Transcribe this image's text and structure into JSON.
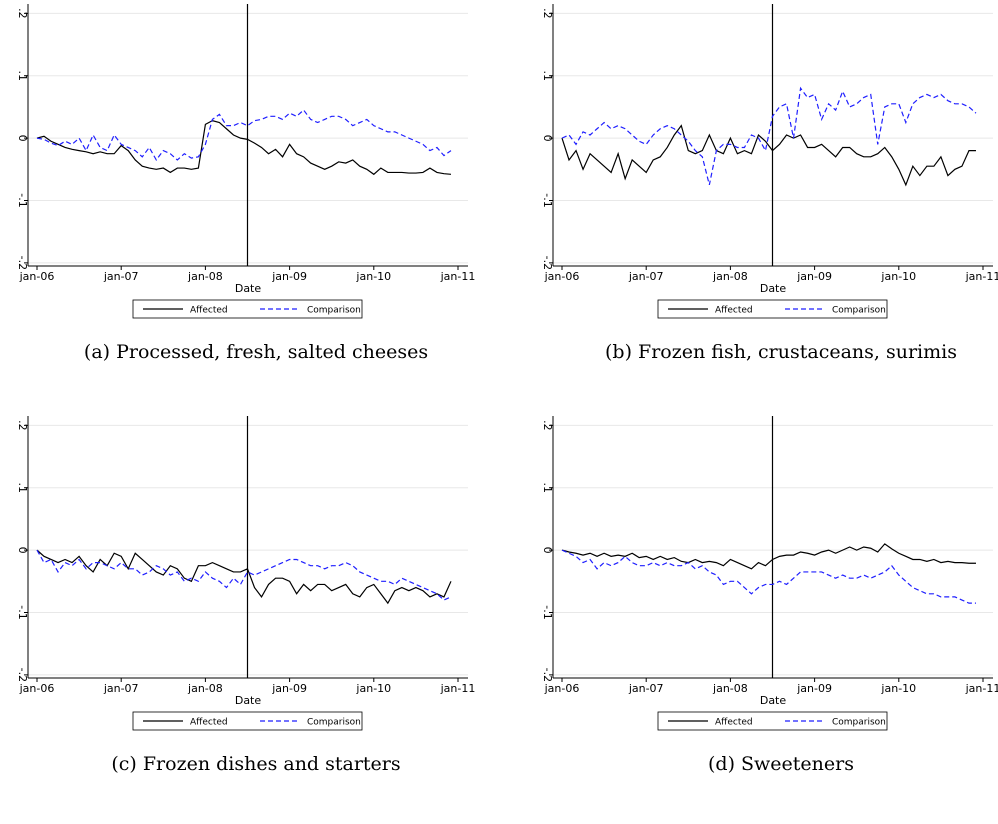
{
  "chart_data": [
    {
      "type": "line",
      "title": "(a) Processed, fresh, salted cheeses",
      "xlabel": "Date",
      "grid": true,
      "legend": "bottom",
      "categories": [
        "jan-06",
        null,
        null,
        null,
        null,
        null,
        null,
        null,
        null,
        null,
        null,
        null,
        "jan-07",
        null,
        null,
        null,
        null,
        null,
        null,
        null,
        null,
        null,
        null,
        null,
        "jan-08",
        null,
        null,
        null,
        null,
        null,
        null,
        null,
        null,
        null,
        null,
        null,
        "jan-09",
        null,
        null,
        null,
        null,
        null,
        null,
        null,
        null,
        null,
        null,
        null,
        "jan-10",
        null,
        null,
        null,
        null,
        null,
        null,
        null,
        null,
        null,
        null,
        null,
        "jan-11"
      ],
      "ylim": [
        -0.205,
        0.215
      ],
      "yticks": [
        {
          "value": -0.2,
          "label": "-.2"
        },
        {
          "value": -0.1,
          "label": "-.1"
        },
        0,
        {
          "value": 0.1,
          "label": ".1"
        },
        {
          "value": 0.2,
          "label": ".2"
        }
      ],
      "series": [
        {
          "name": "Affected",
          "color": "#000000",
          "style": "solid",
          "values": [
            0,
            0.003,
            -0.005,
            -0.01,
            -0.015,
            -0.018,
            -0.02,
            -0.022,
            -0.025,
            -0.022,
            -0.025,
            -0.025,
            -0.012,
            -0.02,
            -0.035,
            -0.045,
            -0.048,
            -0.05,
            -0.048,
            -0.055,
            -0.048,
            -0.048,
            -0.05,
            -0.048,
            0.022,
            0.028,
            0.025,
            0.015,
            0.005,
            0,
            -0.002,
            -0.008,
            -0.015,
            -0.025,
            -0.018,
            -0.03,
            -0.01,
            -0.025,
            -0.03,
            -0.04,
            -0.045,
            -0.05,
            -0.045,
            -0.038,
            -0.04,
            -0.035,
            -0.045,
            -0.05,
            -0.058,
            -0.048,
            -0.055,
            -0.055,
            -0.055,
            -0.056,
            -0.056,
            -0.055,
            -0.048,
            -0.055,
            -0.057,
            -0.058,
            null
          ]
        },
        {
          "name": "Comparison",
          "color": "#1f1fff",
          "style": "dashed",
          "values": [
            0,
            -0.002,
            -0.008,
            -0.012,
            -0.005,
            -0.01,
            0,
            -0.02,
            0.005,
            -0.015,
            -0.02,
            0.005,
            -0.01,
            -0.015,
            -0.02,
            -0.03,
            -0.015,
            -0.035,
            -0.02,
            -0.025,
            -0.035,
            -0.025,
            -0.032,
            -0.03,
            -0.01,
            0.03,
            0.038,
            0.02,
            0.02,
            0.025,
            0.02,
            0.028,
            0.03,
            0.035,
            0.035,
            0.03,
            0.04,
            0.035,
            0.045,
            0.03,
            0.025,
            0.03,
            0.035,
            0.035,
            0.03,
            0.02,
            0.025,
            0.03,
            0.02,
            0.015,
            0.01,
            0.01,
            0.005,
            0,
            -0.005,
            -0.01,
            -0.02,
            -0.015,
            -0.028,
            -0.02,
            null
          ]
        }
      ]
    },
    {
      "type": "line",
      "title": "(b) Frozen fish, crustaceans, surimis",
      "xlabel": "Date",
      "grid": true,
      "legend": "bottom",
      "categories": [
        "jan-06",
        null,
        null,
        null,
        null,
        null,
        null,
        null,
        null,
        null,
        null,
        null,
        "jan-07",
        null,
        null,
        null,
        null,
        null,
        null,
        null,
        null,
        null,
        null,
        null,
        "jan-08",
        null,
        null,
        null,
        null,
        null,
        null,
        null,
        null,
        null,
        null,
        null,
        "jan-09",
        null,
        null,
        null,
        null,
        null,
        null,
        null,
        null,
        null,
        null,
        null,
        "jan-10",
        null,
        null,
        null,
        null,
        null,
        null,
        null,
        null,
        null,
        null,
        null,
        "jan-11"
      ],
      "ylim": [
        -0.205,
        0.215
      ],
      "yticks": [
        {
          "value": -0.2,
          "label": "-.2"
        },
        {
          "value": -0.1,
          "label": "-.1"
        },
        0,
        {
          "value": 0.1,
          "label": ".1"
        },
        {
          "value": 0.2,
          "label": ".2"
        }
      ],
      "series": [
        {
          "name": "Affected",
          "color": "#000000",
          "style": "solid",
          "values": [
            0,
            -0.035,
            -0.02,
            -0.05,
            -0.025,
            -0.035,
            -0.045,
            -0.055,
            -0.025,
            -0.065,
            -0.035,
            -0.045,
            -0.055,
            -0.035,
            -0.03,
            -0.015,
            0.005,
            0.02,
            -0.02,
            -0.025,
            -0.02,
            0.005,
            -0.02,
            -0.025,
            0,
            -0.025,
            -0.02,
            -0.025,
            0.005,
            -0.005,
            -0.02,
            -0.01,
            0.005,
            0,
            0.005,
            -0.015,
            -0.015,
            -0.01,
            -0.02,
            -0.03,
            -0.015,
            -0.015,
            -0.025,
            -0.03,
            -0.03,
            -0.025,
            -0.015,
            -0.03,
            -0.05,
            -0.075,
            -0.045,
            -0.06,
            -0.045,
            -0.045,
            -0.03,
            -0.06,
            -0.05,
            -0.045,
            -0.02,
            -0.02,
            null
          ]
        },
        {
          "name": "Comparison",
          "color": "#1f1fff",
          "style": "dashed",
          "values": [
            0,
            0.005,
            -0.01,
            0.01,
            0.005,
            0.015,
            0.025,
            0.015,
            0.02,
            0.015,
            0.005,
            -0.005,
            -0.01,
            0.005,
            0.015,
            0.02,
            0.015,
            0.005,
            -0.005,
            -0.02,
            -0.03,
            -0.075,
            -0.02,
            -0.01,
            -0.01,
            -0.015,
            -0.015,
            0.005,
            0,
            -0.02,
            0.035,
            0.05,
            0.055,
            0,
            0.08,
            0.065,
            0.07,
            0.03,
            0.055,
            0.045,
            0.075,
            0.05,
            0.055,
            0.065,
            0.07,
            -0.01,
            0.05,
            0.055,
            0.055,
            0.025,
            0.055,
            0.065,
            0.07,
            0.065,
            0.07,
            0.06,
            0.055,
            0.055,
            0.05,
            0.04,
            null
          ]
        }
      ]
    },
    {
      "type": "line",
      "title": "(c) Frozen dishes and starters",
      "xlabel": "Date",
      "grid": true,
      "legend": "bottom",
      "categories": [
        "jan-06",
        null,
        null,
        null,
        null,
        null,
        null,
        null,
        null,
        null,
        null,
        null,
        "jan-07",
        null,
        null,
        null,
        null,
        null,
        null,
        null,
        null,
        null,
        null,
        null,
        "jan-08",
        null,
        null,
        null,
        null,
        null,
        null,
        null,
        null,
        null,
        null,
        null,
        "jan-09",
        null,
        null,
        null,
        null,
        null,
        null,
        null,
        null,
        null,
        null,
        null,
        "jan-10",
        null,
        null,
        null,
        null,
        null,
        null,
        null,
        null,
        null,
        null,
        null,
        "jan-11"
      ],
      "ylim": [
        -0.205,
        0.215
      ],
      "yticks": [
        {
          "value": -0.2,
          "label": "-.2"
        },
        {
          "value": -0.1,
          "label": "-.1"
        },
        0,
        {
          "value": 0.1,
          "label": ".1"
        },
        {
          "value": 0.2,
          "label": ".2"
        }
      ],
      "series": [
        {
          "name": "Affected",
          "color": "#000000",
          "style": "solid",
          "values": [
            0,
            -0.01,
            -0.015,
            -0.02,
            -0.015,
            -0.02,
            -0.01,
            -0.025,
            -0.035,
            -0.015,
            -0.025,
            -0.005,
            -0.01,
            -0.03,
            -0.005,
            -0.015,
            -0.025,
            -0.035,
            -0.04,
            -0.025,
            -0.03,
            -0.045,
            -0.05,
            -0.025,
            -0.025,
            -0.02,
            -0.025,
            -0.03,
            -0.035,
            -0.035,
            -0.03,
            -0.06,
            -0.075,
            -0.055,
            -0.045,
            -0.045,
            -0.05,
            -0.07,
            -0.055,
            -0.065,
            -0.055,
            -0.055,
            -0.065,
            -0.06,
            -0.055,
            -0.07,
            -0.075,
            -0.06,
            -0.055,
            -0.07,
            -0.085,
            -0.065,
            -0.06,
            -0.065,
            -0.06,
            -0.065,
            -0.075,
            -0.07,
            -0.075,
            -0.05,
            null
          ]
        },
        {
          "name": "Comparison",
          "color": "#1f1fff",
          "style": "dashed",
          "values": [
            0,
            -0.02,
            -0.015,
            -0.035,
            -0.02,
            -0.025,
            -0.015,
            -0.03,
            -0.02,
            -0.02,
            -0.025,
            -0.03,
            -0.02,
            -0.03,
            -0.03,
            -0.04,
            -0.035,
            -0.025,
            -0.03,
            -0.04,
            -0.035,
            -0.05,
            -0.045,
            -0.05,
            -0.035,
            -0.045,
            -0.05,
            -0.06,
            -0.045,
            -0.055,
            -0.035,
            -0.04,
            -0.035,
            -0.03,
            -0.025,
            -0.02,
            -0.015,
            -0.015,
            -0.02,
            -0.025,
            -0.025,
            -0.03,
            -0.025,
            -0.025,
            -0.02,
            -0.025,
            -0.035,
            -0.04,
            -0.045,
            -0.05,
            -0.05,
            -0.055,
            -0.045,
            -0.05,
            -0.055,
            -0.06,
            -0.065,
            -0.07,
            -0.08,
            -0.075,
            null
          ]
        }
      ]
    },
    {
      "type": "line",
      "title": "(d) Sweeteners",
      "xlabel": "Date",
      "grid": true,
      "legend": "bottom",
      "categories": [
        "jan-06",
        null,
        null,
        null,
        null,
        null,
        null,
        null,
        null,
        null,
        null,
        null,
        "jan-07",
        null,
        null,
        null,
        null,
        null,
        null,
        null,
        null,
        null,
        null,
        null,
        "jan-08",
        null,
        null,
        null,
        null,
        null,
        null,
        null,
        null,
        null,
        null,
        null,
        "jan-09",
        null,
        null,
        null,
        null,
        null,
        null,
        null,
        null,
        null,
        null,
        null,
        "jan-10",
        null,
        null,
        null,
        null,
        null,
        null,
        null,
        null,
        null,
        null,
        null,
        "jan-11"
      ],
      "ylim": [
        -0.205,
        0.215
      ],
      "yticks": [
        {
          "value": -0.2,
          "label": "-.2"
        },
        {
          "value": -0.1,
          "label": "-.1"
        },
        0,
        {
          "value": 0.1,
          "label": ".1"
        },
        {
          "value": 0.2,
          "label": ".2"
        }
      ],
      "series": [
        {
          "name": "Affected",
          "color": "#000000",
          "style": "solid",
          "values": [
            0,
            -0.003,
            -0.005,
            -0.008,
            -0.005,
            -0.01,
            -0.005,
            -0.01,
            -0.008,
            -0.01,
            -0.005,
            -0.012,
            -0.01,
            -0.015,
            -0.01,
            -0.015,
            -0.012,
            -0.018,
            -0.02,
            -0.015,
            -0.02,
            -0.018,
            -0.02,
            -0.025,
            -0.015,
            -0.02,
            -0.025,
            -0.03,
            -0.02,
            -0.025,
            -0.015,
            -0.01,
            -0.008,
            -0.008,
            -0.003,
            -0.005,
            -0.008,
            -0.003,
            0,
            -0.005,
            0,
            0.005,
            0,
            0.005,
            0.003,
            -0.003,
            0.01,
            0.002,
            -0.005,
            -0.01,
            -0.015,
            -0.015,
            -0.018,
            -0.015,
            -0.02,
            -0.018,
            -0.02,
            -0.02,
            -0.021,
            -0.021,
            null
          ]
        },
        {
          "name": "Comparison",
          "color": "#1f1fff",
          "style": "dashed",
          "values": [
            0,
            -0.005,
            -0.01,
            -0.02,
            -0.015,
            -0.03,
            -0.02,
            -0.025,
            -0.02,
            -0.01,
            -0.02,
            -0.025,
            -0.025,
            -0.02,
            -0.025,
            -0.02,
            -0.025,
            -0.025,
            -0.02,
            -0.03,
            -0.025,
            -0.035,
            -0.04,
            -0.055,
            -0.05,
            -0.05,
            -0.06,
            -0.07,
            -0.06,
            -0.055,
            -0.055,
            -0.05,
            -0.055,
            -0.045,
            -0.035,
            -0.035,
            -0.035,
            -0.035,
            -0.04,
            -0.045,
            -0.04,
            -0.045,
            -0.045,
            -0.04,
            -0.045,
            -0.04,
            -0.035,
            -0.025,
            -0.04,
            -0.05,
            -0.06,
            -0.065,
            -0.07,
            -0.07,
            -0.075,
            -0.075,
            -0.075,
            -0.08,
            -0.085,
            -0.085,
            null
          ]
        }
      ]
    }
  ]
}
